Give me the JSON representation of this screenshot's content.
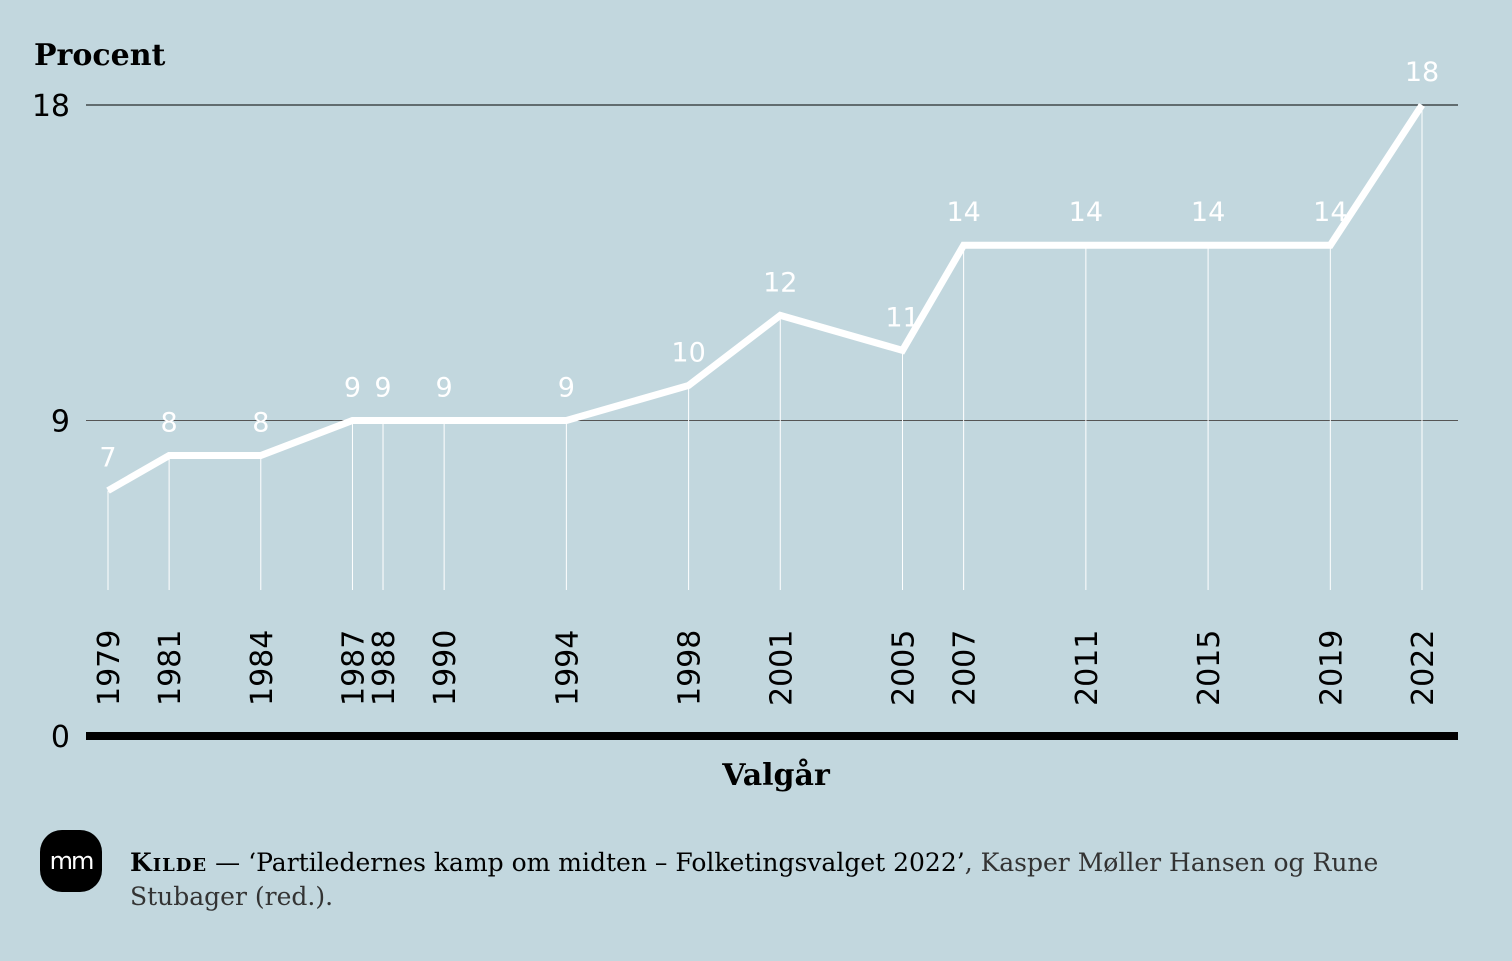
{
  "chart_data": {
    "type": "line",
    "ylabel": "Procent",
    "xlabel": "Valgår",
    "ylim": [
      0,
      18
    ],
    "yticks": [
      0,
      9,
      18
    ],
    "x": [
      1979,
      1981,
      1984,
      1987,
      1988,
      1990,
      1994,
      1998,
      2001,
      2005,
      2007,
      2011,
      2015,
      2019,
      2022
    ],
    "values": [
      7,
      8,
      8,
      9,
      9,
      9,
      9,
      10,
      12,
      11,
      14,
      14,
      14,
      14,
      18
    ],
    "data_labels": [
      "7",
      "8",
      "8",
      "9",
      "9",
      "9",
      "9",
      "10",
      "12",
      "11",
      "14",
      "14",
      "14",
      "14",
      "18"
    ],
    "grid": "horizontal",
    "colors": {
      "background": "#c2d7de",
      "line": "#ffffff",
      "axis": "#000000"
    }
  },
  "source": {
    "label": "Kilde",
    "dash": "—",
    "title": "‘Partiledernes kamp om midten – Folketingsvalget 2022’",
    "rest": ", Kasper Møller Hansen og Rune Stubager (red.)."
  },
  "logo": {
    "text": "mm"
  }
}
